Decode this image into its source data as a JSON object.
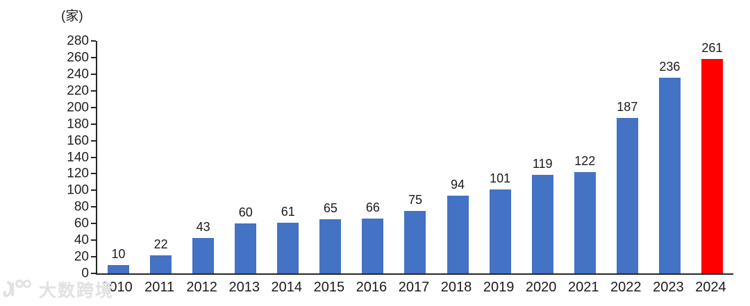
{
  "chart_data": {
    "type": "bar",
    "unit_label": "(家)",
    "categories": [
      "2010",
      "2011",
      "2012",
      "2013",
      "2014",
      "2015",
      "2016",
      "2017",
      "2018",
      "2019",
      "2020",
      "2021",
      "2022",
      "2023",
      "2024"
    ],
    "values": [
      10,
      22,
      43,
      60,
      61,
      65,
      66,
      75,
      94,
      101,
      119,
      122,
      187,
      236,
      261
    ],
    "ylim": [
      0,
      280
    ],
    "ytick_step": 20,
    "grid": false,
    "legend": null,
    "colors": {
      "bar_default": "#4472C4",
      "bar_highlight": "#FF0000",
      "highlight_index": 14,
      "axis": "#262626",
      "text": "#1a1a1a"
    }
  },
  "watermark": {
    "logo": "100",
    "text": "大数跨境",
    "color": "#e2e2e2"
  }
}
